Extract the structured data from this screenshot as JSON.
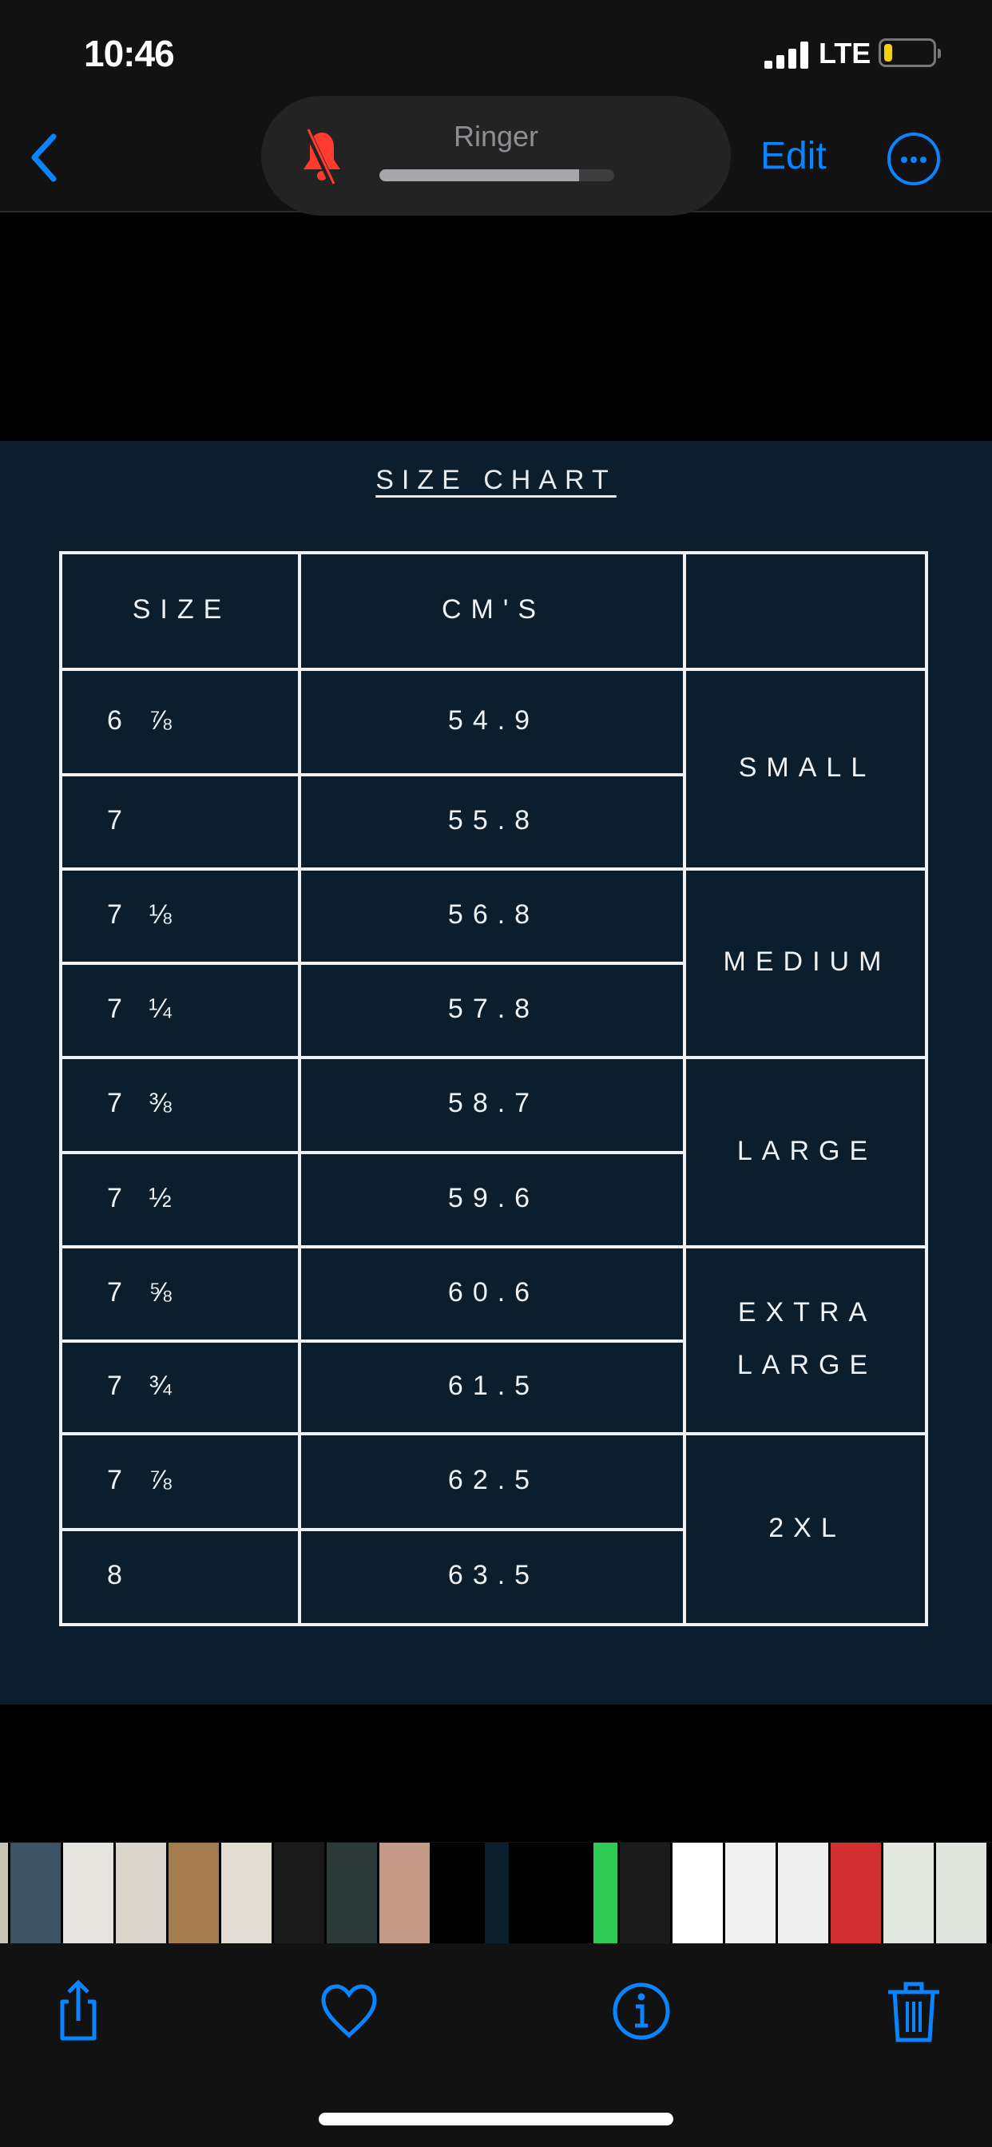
{
  "status_bar": {
    "time": "10:46",
    "network": "LTE",
    "battery_color": "#f5d10a"
  },
  "nav": {
    "back_icon": "chevron-left-icon",
    "edit_label": "Edit",
    "more_icon": "ellipsis-circle-icon",
    "accent": "#0a84ff"
  },
  "ringer_hud": {
    "label": "Ringer",
    "muted": true,
    "volume_percent": 85,
    "icon": "bell-slash-icon"
  },
  "photo": {
    "title": "SIZE CHART",
    "headers": [
      "SIZE",
      "CM'S",
      ""
    ],
    "rows": [
      {
        "size": "6 ⅞",
        "cm": "54.9"
      },
      {
        "size": "7",
        "cm": "55.8"
      },
      {
        "size": "7 ⅛",
        "cm": "56.8"
      },
      {
        "size": "7 ¼",
        "cm": "57.8"
      },
      {
        "size": "7 ⅜",
        "cm": "58.7"
      },
      {
        "size": "7 ½",
        "cm": "59.6"
      },
      {
        "size": "7 ⅝",
        "cm": "60.6"
      },
      {
        "size": "7 ¾",
        "cm": "61.5"
      },
      {
        "size": "7 ⅞",
        "cm": "62.5"
      },
      {
        "size": "8",
        "cm": "63.5"
      }
    ],
    "groups": [
      "SMALL",
      "MEDIUM",
      "LARGE",
      "EXTRA LARGE",
      "2XL"
    ],
    "background": "#0a1e2d"
  },
  "thumbnails": [
    "#c9c4b8",
    "#3d5466",
    "#e6e4df",
    "#dad6cd",
    "#a57c4e",
    "#e1ddd3",
    "#1a1a1a",
    "#2c3a3a",
    "#c49a86",
    "#000000",
    "#0b1e2c",
    "#000000",
    "#2ecc55",
    "#1b1b1b",
    "#ffffff",
    "#f0f0f0",
    "#eeeeee",
    "#d23030",
    "#e4e8e0",
    "#dfe4dc"
  ],
  "toolbar": {
    "share": "share-icon",
    "favorite": "heart-icon",
    "info": "info-icon",
    "delete": "trash-icon"
  }
}
